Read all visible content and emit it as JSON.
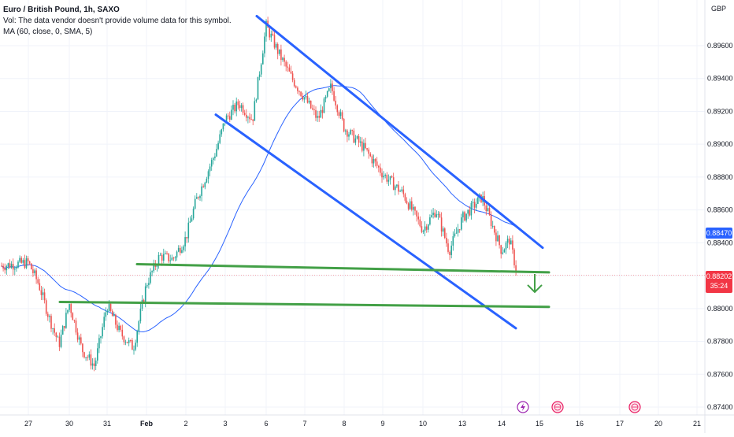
{
  "legend": {
    "symbol": "Euro / British Pound, 1h, SAXO",
    "volume_note": "Vol: The data vendor doesn't provide volume data for this symbol.",
    "ma": "MA (60, close, 0, SMA, 5)"
  },
  "currency": "GBP",
  "price_boxes": {
    "ma_value": "0.88470",
    "last_price": "0.88202",
    "countdown": "35:24"
  },
  "colors": {
    "up": "#26a69a",
    "down": "#ef5350",
    "ma": "#2962ff",
    "channel": "#2962ff",
    "support": "#43a047",
    "arrow": "#43a047",
    "ma_box": "#2962ff",
    "price_box": "#f23645"
  },
  "icons": [
    "lightning-event-icon",
    "globe-event-icon",
    "globe-event-icon"
  ],
  "chart_data": {
    "type": "candlestick",
    "timeframe": "1h",
    "y_axis": {
      "ticks": [
        0.874,
        0.876,
        0.878,
        0.88,
        0.882,
        0.884,
        0.886,
        0.888,
        0.89,
        0.892,
        0.894,
        0.896
      ],
      "ylim": [
        0.8737,
        0.8981
      ],
      "side": "right"
    },
    "x_axis": {
      "ticks": [
        "27",
        "30",
        "31",
        "Feb",
        "2",
        "3",
        "6",
        "7",
        "8",
        "9",
        "10",
        "13",
        "14",
        "15",
        "16",
        "17",
        "20",
        "21"
      ]
    },
    "grid": true,
    "ma_period": 60,
    "last_price": 0.88202,
    "ma_last": 0.8847,
    "price_keypoints": [
      [
        "27",
        0.8828
      ],
      [
        "27",
        0.8815
      ],
      [
        "27",
        0.8795
      ],
      [
        "27",
        0.8778
      ],
      [
        "30",
        0.8803
      ],
      [
        "30",
        0.8775
      ],
      [
        "30",
        0.8765
      ],
      [
        "31",
        0.8802
      ],
      [
        "31",
        0.8785
      ],
      [
        "31",
        0.8776
      ],
      [
        "Feb",
        0.8815
      ],
      [
        "Feb",
        0.8832
      ],
      [
        "Feb",
        0.883
      ],
      [
        "2",
        0.8843
      ],
      [
        "2",
        0.8865
      ],
      [
        "2",
        0.888
      ],
      [
        "2",
        0.8895
      ],
      [
        "3",
        0.8915
      ],
      [
        "3",
        0.8925
      ],
      [
        "3",
        0.8915
      ],
      [
        "6",
        0.8972
      ],
      [
        "6",
        0.8955
      ],
      [
        "6",
        0.894
      ],
      [
        "7",
        0.8928
      ],
      [
        "7",
        0.8915
      ],
      [
        "7",
        0.8935
      ],
      [
        "8",
        0.891
      ],
      [
        "8",
        0.8898
      ],
      [
        "9",
        0.8882
      ],
      [
        "9",
        0.887
      ],
      [
        "10",
        0.8848
      ],
      [
        "10",
        0.886
      ],
      [
        "10",
        0.8835
      ],
      [
        "13",
        0.8855
      ],
      [
        "13",
        0.8868
      ],
      [
        "14",
        0.8835
      ],
      [
        "14",
        0.8842
      ],
      [
        "14",
        0.882
      ]
    ],
    "annotations": {
      "channel_upper": [
        [
          "6",
          0.8978
        ],
        [
          "15",
          0.8837
        ]
      ],
      "channel_lower": [
        [
          "3",
          0.8918
        ],
        [
          "15",
          0.8788
        ]
      ],
      "support_upper": [
        [
          "Feb",
          0.8827
        ],
        [
          "15",
          0.8822
        ]
      ],
      "support_lower": [
        [
          "30",
          0.8804
        ],
        [
          "15",
          0.8801
        ]
      ],
      "arrow": "down"
    }
  }
}
